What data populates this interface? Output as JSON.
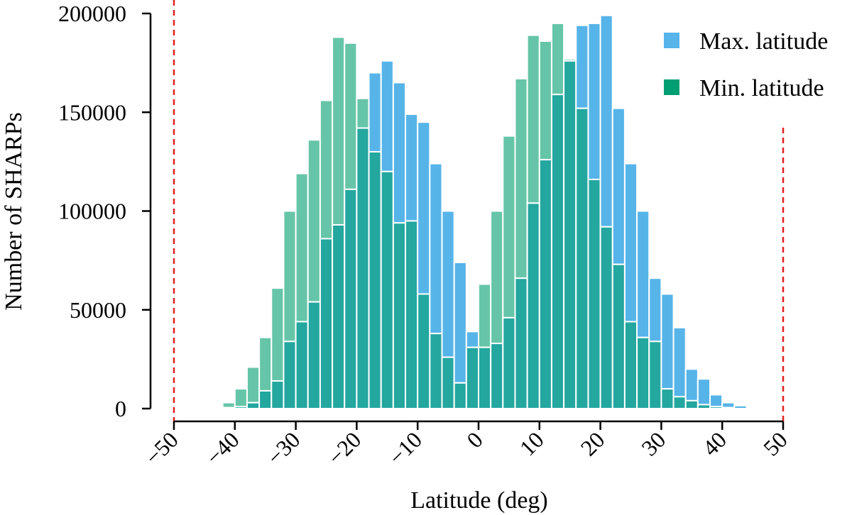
{
  "chart_data": {
    "type": "bar",
    "xlabel": "Latitude (deg)",
    "ylabel": "Number of SHARPs",
    "xlim": [
      -50,
      50
    ],
    "ylim": [
      0,
      200000
    ],
    "xticks": [
      "−50",
      "−40",
      "−30",
      "−20",
      "−10",
      "0",
      "10",
      "20",
      "30",
      "40",
      "50"
    ],
    "yticks": [
      "0",
      "50000",
      "100000",
      "150000",
      "200000"
    ],
    "xtick_values": [
      -50,
      -40,
      -30,
      -20,
      -10,
      0,
      10,
      20,
      30,
      40,
      50
    ],
    "ytick_values": [
      0,
      50000,
      100000,
      150000,
      200000
    ],
    "reference_lines": [
      -50,
      50
    ],
    "bin_width": 2,
    "legend_position": "top-right",
    "x": [
      -43,
      -41,
      -39,
      -37,
      -35,
      -33,
      -31,
      -29,
      -27,
      -25,
      -23,
      -21,
      -19,
      -17,
      -15,
      -13,
      -11,
      -9,
      -7,
      -5,
      -3,
      -1,
      1,
      3,
      5,
      7,
      9,
      11,
      13,
      15,
      17,
      19,
      21,
      23,
      25,
      27,
      29,
      31,
      33,
      35,
      37,
      39,
      41,
      43,
      45
    ],
    "series": [
      {
        "name": "Max. latitude",
        "color": "#56b4e9",
        "values": [
          0,
          500,
          1000,
          3000,
          9000,
          14000,
          34000,
          44000,
          54000,
          86000,
          93000,
          111000,
          142000,
          170000,
          176000,
          165000,
          149000,
          145000,
          124000,
          100000,
          74000,
          39000,
          31000,
          33000,
          46000,
          66000,
          104000,
          126000,
          159000,
          176000,
          194000,
          195000,
          199000,
          152000,
          124000,
          100000,
          66000,
          58000,
          41000,
          20000,
          15000,
          7000,
          3000,
          1500,
          700
        ]
      },
      {
        "name": "Min. latitude",
        "color": "#009e73",
        "values": [
          500,
          3000,
          10000,
          21000,
          36000,
          61000,
          100000,
          119000,
          136000,
          156000,
          188000,
          185000,
          157000,
          130000,
          120000,
          94000,
          95000,
          58000,
          38000,
          26000,
          13000,
          31000,
          63000,
          100000,
          138000,
          167000,
          189000,
          186000,
          195000,
          177000,
          152000,
          116000,
          92000,
          73000,
          44000,
          36000,
          34000,
          10000,
          6000,
          4000,
          2000,
          1000,
          500,
          0,
          0
        ]
      }
    ]
  }
}
